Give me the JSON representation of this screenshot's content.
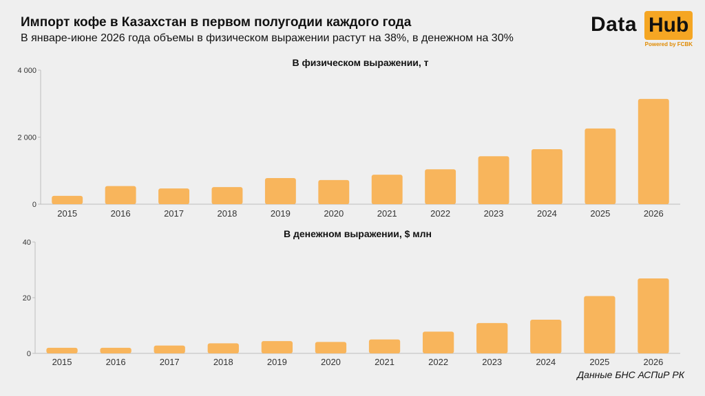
{
  "header": {
    "title": "Импорт кофе в Казахстан в первом полугодии каждого года",
    "subtitle": "В январе-июне 2026 года объемы в физическом выражении растут на 38%, в денежном на 30%"
  },
  "logo": {
    "word1": "Data",
    "word2": "Hub",
    "tagline": "Powered by FCBK",
    "accent_color": "#f5a623"
  },
  "source": "Данные БНС АСПиР РК",
  "chart_data": [
    {
      "type": "bar",
      "title": "В физическом выражении, т",
      "categories": [
        "2015",
        "2016",
        "2017",
        "2018",
        "2019",
        "2020",
        "2021",
        "2022",
        "2023",
        "2024",
        "2025",
        "2026"
      ],
      "values": [
        250,
        540,
        470,
        510,
        780,
        720,
        880,
        1040,
        1430,
        1640,
        2260,
        3140
      ],
      "ylim": [
        0,
        4000
      ],
      "yticks": [
        0,
        2000,
        4000
      ],
      "ytick_labels": [
        "0",
        "2 000",
        "4 000"
      ],
      "bar_color": "#f8b55c",
      "grid": false
    },
    {
      "type": "bar",
      "title": "В денежном выражении, $ млн",
      "categories": [
        "2015",
        "2016",
        "2017",
        "2018",
        "2019",
        "2020",
        "2021",
        "2022",
        "2023",
        "2024",
        "2025",
        "2026"
      ],
      "values": [
        2.0,
        2.0,
        2.8,
        3.6,
        4.4,
        4.1,
        5.0,
        7.8,
        10.9,
        12.1,
        20.6,
        26.9
      ],
      "ylim": [
        0,
        40
      ],
      "yticks": [
        0,
        20,
        40
      ],
      "ytick_labels": [
        "0",
        "20",
        "40"
      ],
      "bar_color": "#f8b55c",
      "grid": false
    }
  ]
}
